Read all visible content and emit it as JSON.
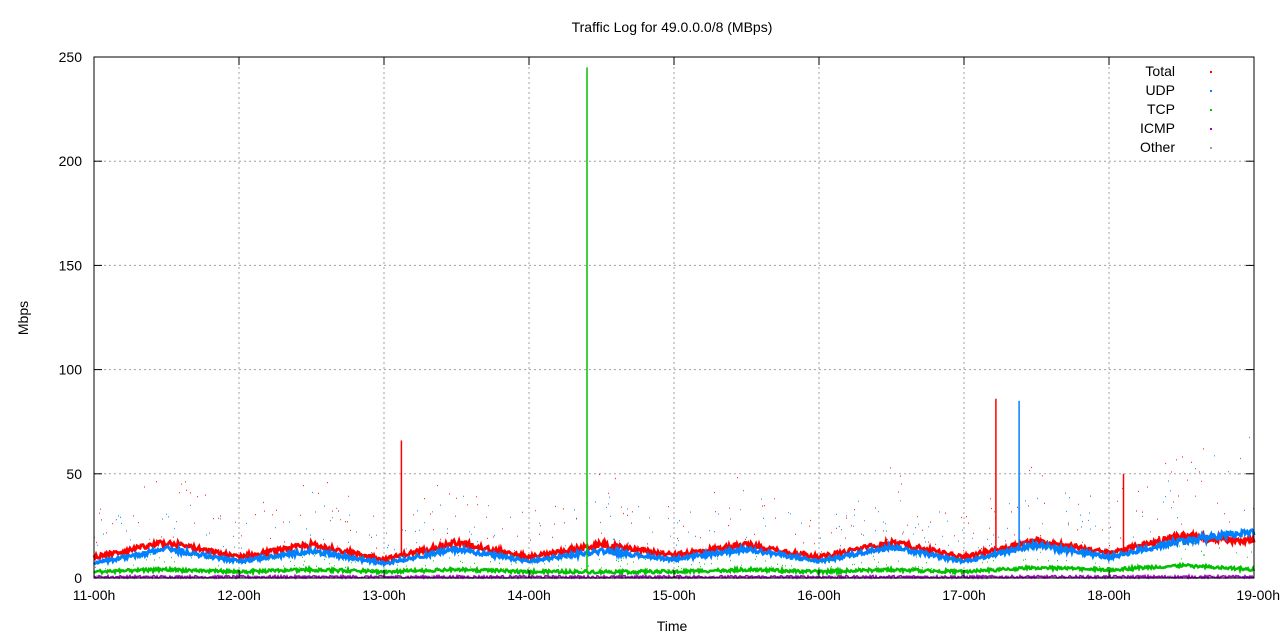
{
  "chart_data": {
    "type": "scatter",
    "title": "Traffic Log for 49.0.0.0/8 (MBps)",
    "xlabel": "Time",
    "ylabel": "Mbps",
    "x_categories": [
      "11-00h",
      "12-00h",
      "13-00h",
      "14-00h",
      "15-00h",
      "16-00h",
      "17-00h",
      "18-00h",
      "19-00h"
    ],
    "ylim": [
      0,
      250
    ],
    "yticks": [
      0,
      50,
      100,
      150,
      200,
      250
    ],
    "grid": true,
    "legend_position": "top-right",
    "series": [
      {
        "name": "Total",
        "color": "#ff0000",
        "x": [
          0,
          0.5,
          1,
          1.5,
          2,
          2.5,
          3,
          3.5,
          4,
          4.5,
          5,
          5.5,
          6,
          6.5,
          7,
          7.5,
          8
        ],
        "y": [
          10,
          17,
          10,
          16,
          9,
          17,
          10,
          16,
          11,
          16,
          10,
          17,
          10,
          18,
          12,
          20,
          18
        ]
      },
      {
        "name": "UDP",
        "color": "#0080ff",
        "x": [
          0,
          0.5,
          1,
          1.5,
          2,
          2.5,
          3,
          3.5,
          4,
          4.5,
          5,
          5.5,
          6,
          6.5,
          7,
          7.5,
          8
        ],
        "y": [
          7,
          14,
          8,
          13,
          7,
          14,
          8,
          13,
          9,
          14,
          8,
          15,
          8,
          16,
          10,
          18,
          22
        ]
      },
      {
        "name": "TCP",
        "color": "#00c000",
        "x": [
          0,
          0.5,
          1,
          1.5,
          2,
          2.5,
          3,
          3.5,
          4,
          4.5,
          5,
          5.5,
          6,
          6.5,
          7,
          7.5,
          8
        ],
        "y": [
          3,
          4,
          3,
          4,
          3,
          4,
          3,
          3,
          3,
          4,
          3,
          4,
          3,
          5,
          4,
          6,
          4
        ]
      },
      {
        "name": "ICMP",
        "color": "#a000c0",
        "x": [
          0,
          1,
          2,
          3,
          4,
          5,
          6,
          7,
          8
        ],
        "y": [
          0.5,
          0.5,
          0.5,
          0.5,
          0.5,
          0.5,
          0.5,
          0.5,
          0.5
        ]
      },
      {
        "name": "Other",
        "color": "#a0a0a0",
        "x": [
          0,
          1,
          2,
          3,
          4,
          5,
          6,
          7,
          8
        ],
        "y": [
          0.2,
          0.2,
          0.2,
          0.2,
          0.2,
          0.2,
          0.2,
          0.2,
          0.2
        ]
      }
    ],
    "spikes": [
      {
        "x": 3.4,
        "y": 245,
        "series": "TCP"
      },
      {
        "x": 2.12,
        "y": 66,
        "series": "Total"
      },
      {
        "x": 6.22,
        "y": 86,
        "series": "Total"
      },
      {
        "x": 6.38,
        "y": 85,
        "series": "UDP"
      },
      {
        "x": 7.1,
        "y": 50,
        "series": "Total"
      }
    ]
  }
}
